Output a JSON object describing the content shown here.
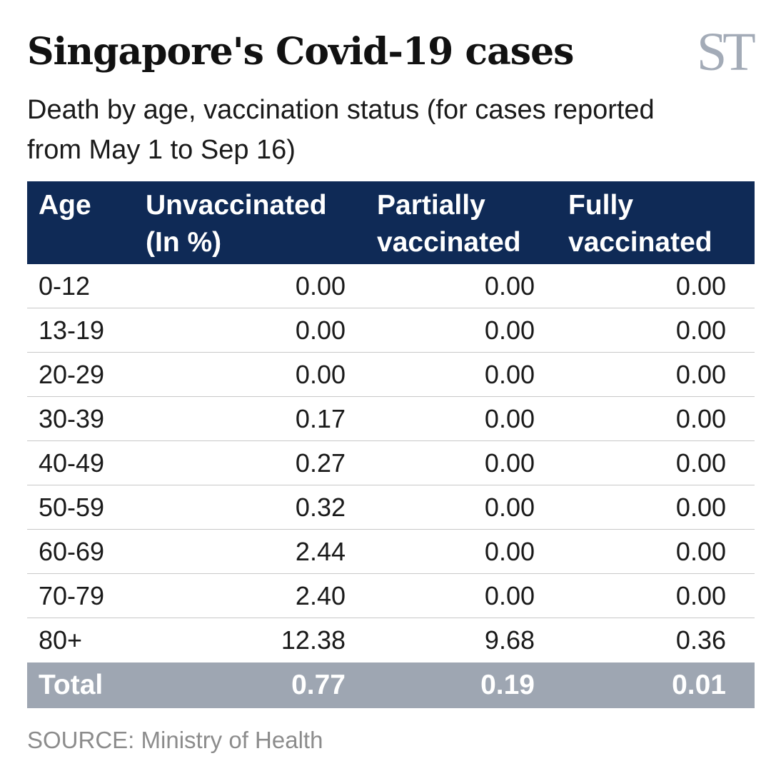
{
  "title": "Singapore's Covid-19 cases",
  "logo": "ST",
  "subtitle": "Death by age, vaccination status (for cases reported from May 1 to Sep 16)",
  "source": "SOURCE: Ministry of Health",
  "chart_data": {
    "type": "table",
    "columns": [
      "Age",
      "Unvaccinated (In %)",
      "Partially vaccinated",
      "Fully vaccinated"
    ],
    "rows": [
      [
        "0-12",
        "0.00",
        "0.00",
        "0.00"
      ],
      [
        "13-19",
        "0.00",
        "0.00",
        "0.00"
      ],
      [
        "20-29",
        "0.00",
        "0.00",
        "0.00"
      ],
      [
        "30-39",
        "0.17",
        "0.00",
        "0.00"
      ],
      [
        "40-49",
        "0.27",
        "0.00",
        "0.00"
      ],
      [
        "50-59",
        "0.32",
        "0.00",
        "0.00"
      ],
      [
        "60-69",
        "2.44",
        "0.00",
        "0.00"
      ],
      [
        "70-79",
        "2.40",
        "0.00",
        "0.00"
      ],
      [
        "80+",
        "12.38",
        "9.68",
        "0.36"
      ]
    ],
    "total": [
      "Total",
      "0.77",
      "0.19",
      "0.01"
    ],
    "colors": {
      "header": "#0f2a56",
      "total": "#9ea6b2"
    }
  }
}
